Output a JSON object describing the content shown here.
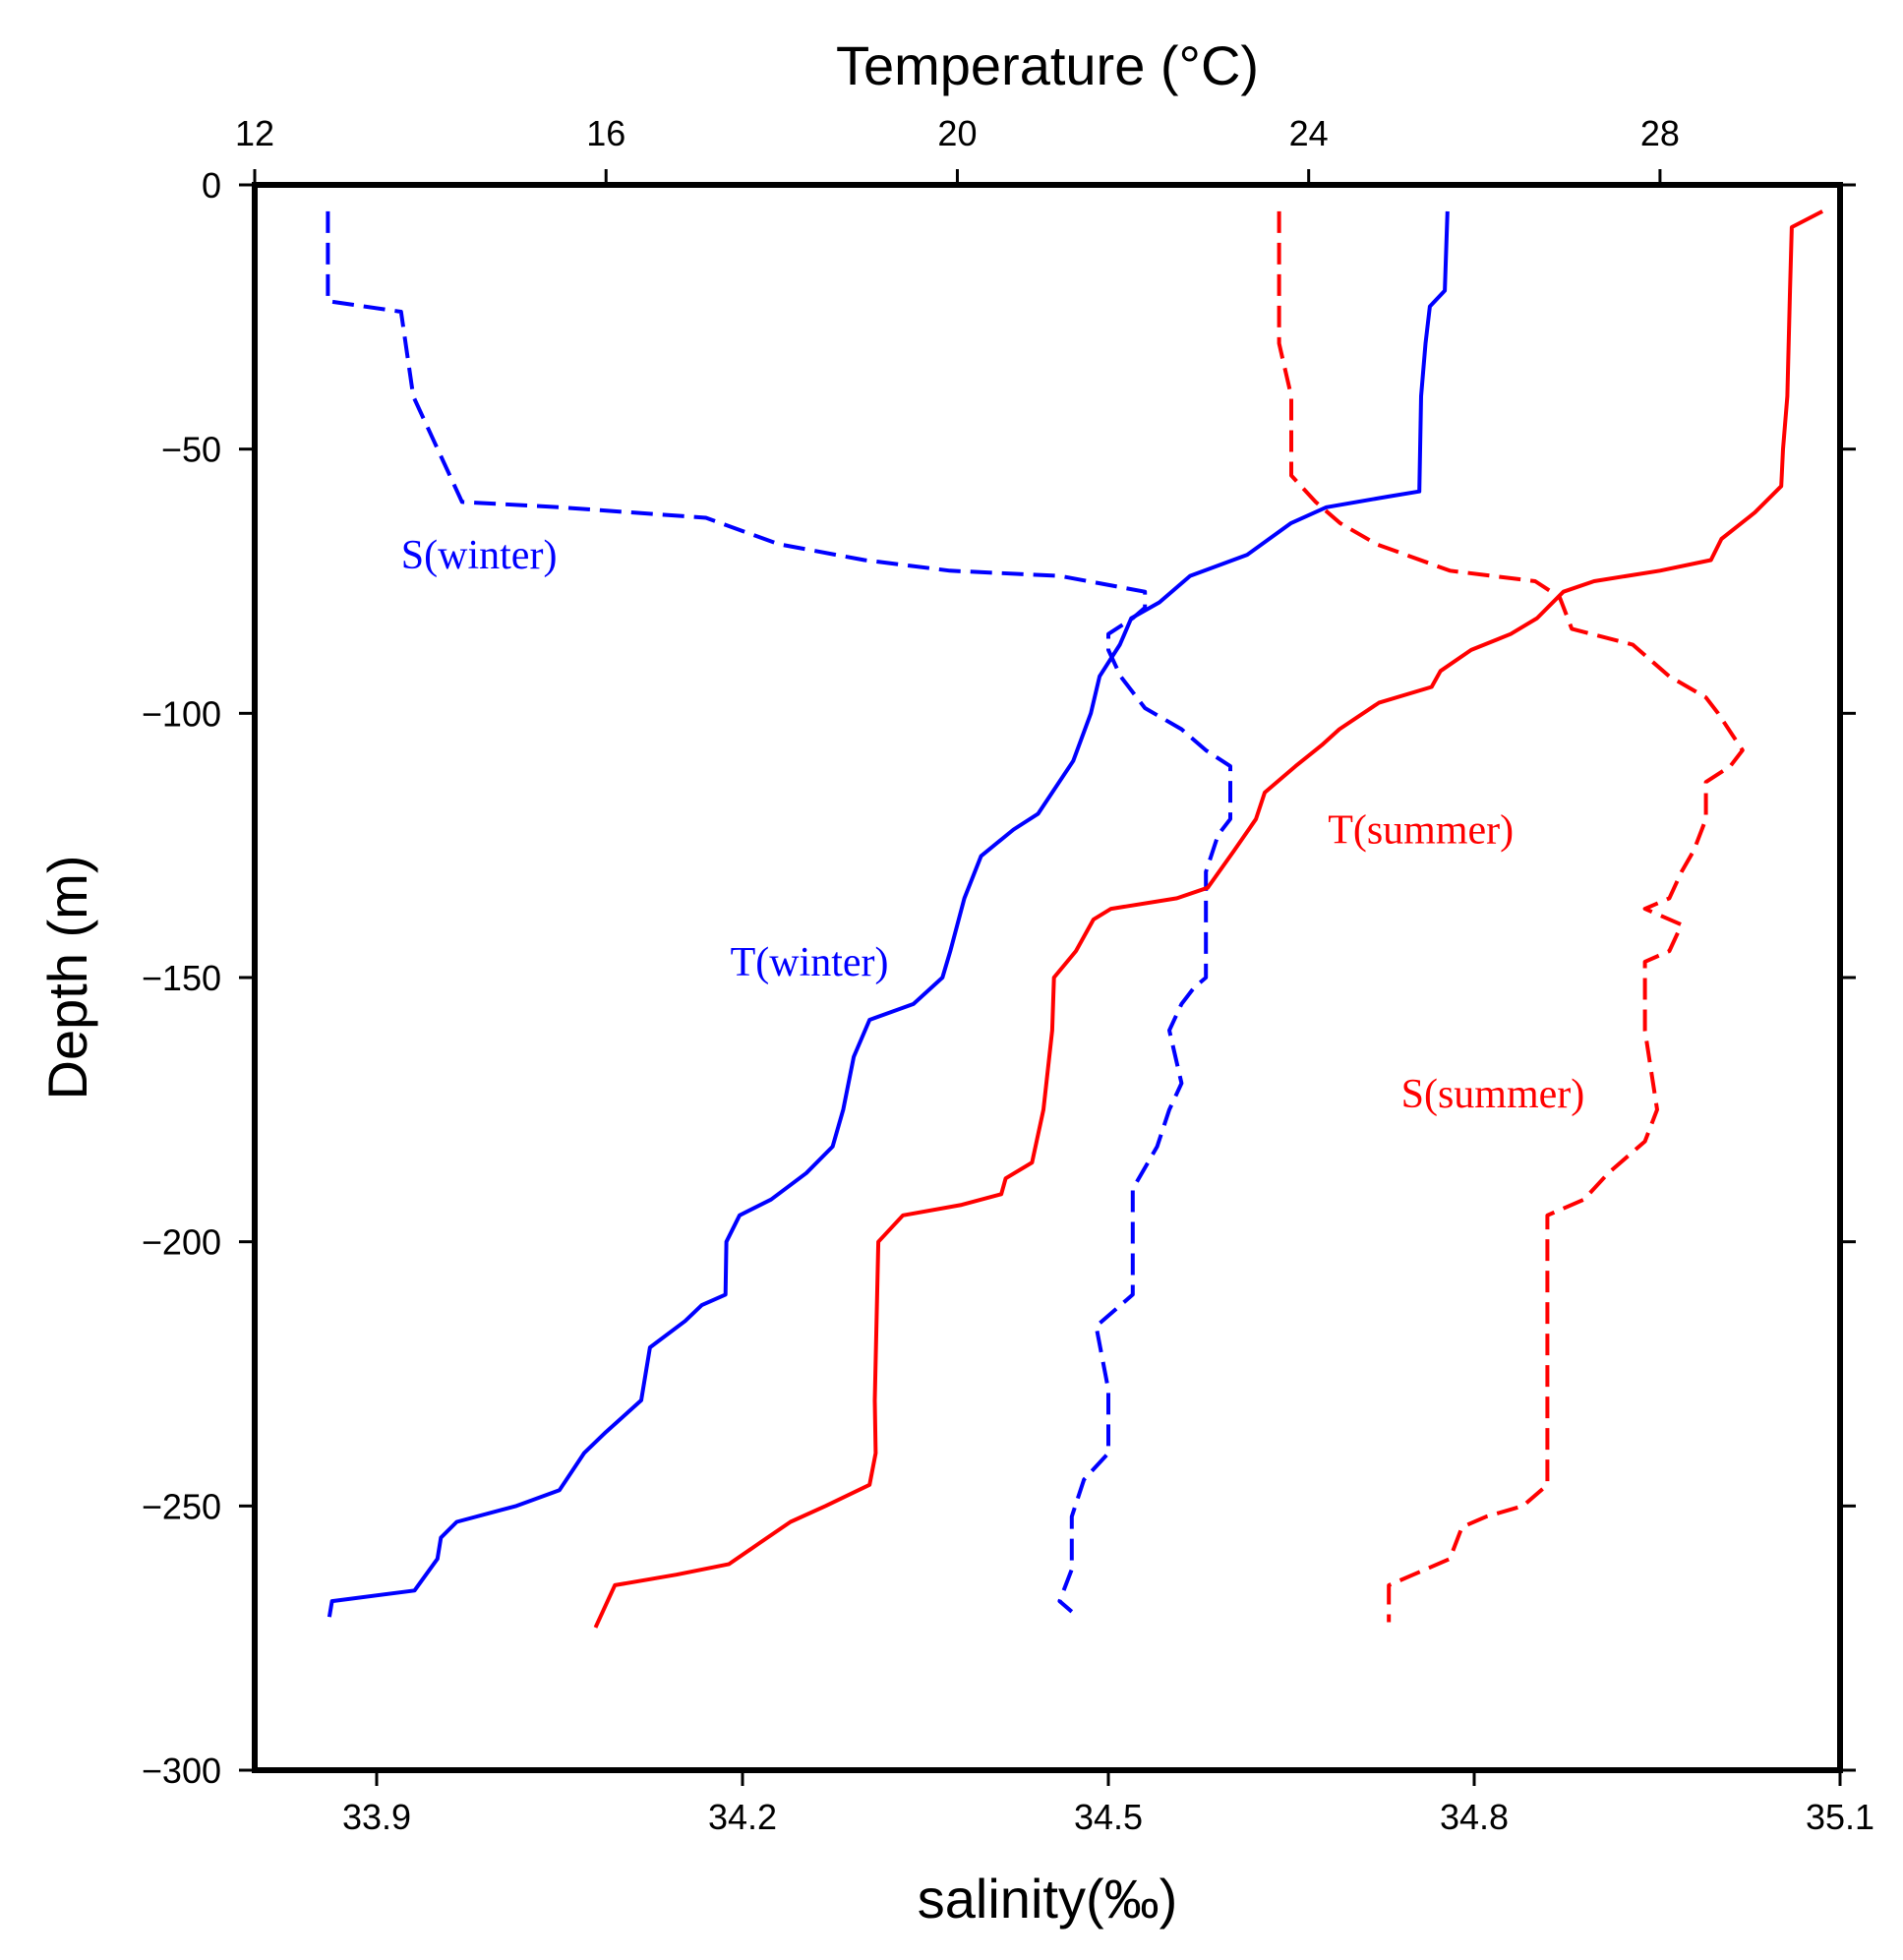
{
  "chart_data": {
    "type": "line",
    "xlabel_bottom": "salinity(‰)",
    "xlabel_top": "Temperature (°C)",
    "ylabel": "Depth (m)",
    "x_bottom_lim": [
      33.8,
      35.1
    ],
    "x_top_lim": [
      12,
      30.05
    ],
    "ylim": [
      -300,
      0
    ],
    "x_bottom_ticks": [
      33.9,
      34.2,
      34.5,
      34.8,
      35.1
    ],
    "x_top_ticks": [
      12,
      16,
      20,
      24,
      28
    ],
    "y_ticks": [
      0,
      -50,
      -100,
      -150,
      -200,
      -250,
      -300
    ],
    "grid": false,
    "legend": "none",
    "series": [
      {
        "name": "S(winter)",
        "axis": "salinity",
        "color": "#0000ff",
        "dash": "dashed",
        "points": [
          [
            33.86,
            -5
          ],
          [
            33.86,
            -22
          ],
          [
            33.92,
            -24
          ],
          [
            33.93,
            -40
          ],
          [
            33.96,
            -55
          ],
          [
            33.97,
            -60
          ],
          [
            34.05,
            -61
          ],
          [
            34.17,
            -63
          ],
          [
            34.23,
            -68
          ],
          [
            34.3,
            -71
          ],
          [
            34.37,
            -73
          ],
          [
            34.46,
            -74
          ],
          [
            34.53,
            -77
          ],
          [
            34.53,
            -80
          ],
          [
            34.52,
            -82
          ],
          [
            34.5,
            -85
          ],
          [
            34.5,
            -88
          ],
          [
            34.51,
            -93
          ],
          [
            34.53,
            -99
          ],
          [
            34.56,
            -103
          ],
          [
            34.58,
            -107
          ],
          [
            34.6,
            -110
          ],
          [
            34.6,
            -120
          ],
          [
            34.59,
            -123
          ],
          [
            34.58,
            -130
          ],
          [
            34.58,
            -136
          ],
          [
            34.58,
            -150
          ],
          [
            34.57,
            -152
          ],
          [
            34.56,
            -155
          ],
          [
            34.55,
            -160
          ],
          [
            34.56,
            -170
          ],
          [
            34.55,
            -175
          ],
          [
            34.54,
            -182
          ],
          [
            34.52,
            -190
          ],
          [
            34.52,
            -210
          ],
          [
            34.51,
            -212
          ],
          [
            34.49,
            -216
          ],
          [
            34.5,
            -228
          ],
          [
            34.5,
            -240
          ],
          [
            34.48,
            -245
          ],
          [
            34.47,
            -252
          ],
          [
            34.47,
            -262
          ],
          [
            34.46,
            -268
          ],
          [
            34.47,
            -270
          ]
        ]
      },
      {
        "name": "T(winter)",
        "axis": "temperature",
        "color": "#0000ff",
        "dash": "solid",
        "points": [
          [
            25.58,
            -5
          ],
          [
            25.55,
            -20
          ],
          [
            25.38,
            -23
          ],
          [
            25.33,
            -30
          ],
          [
            25.28,
            -40
          ],
          [
            25.26,
            -58
          ],
          [
            24.9,
            -59
          ],
          [
            24.2,
            -61
          ],
          [
            23.8,
            -64
          ],
          [
            23.3,
            -70
          ],
          [
            22.65,
            -74
          ],
          [
            22.3,
            -79
          ],
          [
            21.98,
            -82
          ],
          [
            21.85,
            -87
          ],
          [
            21.62,
            -93
          ],
          [
            21.52,
            -100
          ],
          [
            21.32,
            -109
          ],
          [
            20.92,
            -119
          ],
          [
            20.64,
            -122
          ],
          [
            20.27,
            -127
          ],
          [
            20.08,
            -135
          ],
          [
            19.92,
            -145
          ],
          [
            19.83,
            -150
          ],
          [
            19.5,
            -155
          ],
          [
            19.0,
            -158
          ],
          [
            18.82,
            -165
          ],
          [
            18.7,
            -175
          ],
          [
            18.58,
            -182
          ],
          [
            18.28,
            -187
          ],
          [
            17.88,
            -192
          ],
          [
            17.52,
            -195
          ],
          [
            17.37,
            -200
          ],
          [
            17.36,
            -210
          ],
          [
            17.09,
            -212
          ],
          [
            16.9,
            -215
          ],
          [
            16.5,
            -220
          ],
          [
            16.4,
            -230
          ],
          [
            16.0,
            -236
          ],
          [
            15.75,
            -240
          ],
          [
            15.47,
            -247
          ],
          [
            14.98,
            -250
          ],
          [
            14.3,
            -253
          ],
          [
            14.12,
            -256
          ],
          [
            14.08,
            -260
          ],
          [
            13.82,
            -266
          ],
          [
            12.88,
            -268
          ],
          [
            12.85,
            -271
          ]
        ]
      },
      {
        "name": "T(summer)",
        "axis": "temperature",
        "color": "#ff0000",
        "dash": "solid",
        "points": [
          [
            29.85,
            -5
          ],
          [
            29.5,
            -8
          ],
          [
            29.48,
            -20
          ],
          [
            29.45,
            -40
          ],
          [
            29.4,
            -50
          ],
          [
            29.38,
            -57
          ],
          [
            29.08,
            -62
          ],
          [
            28.7,
            -67
          ],
          [
            28.58,
            -71
          ],
          [
            28.0,
            -73
          ],
          [
            27.25,
            -75
          ],
          [
            26.9,
            -77
          ],
          [
            26.6,
            -82
          ],
          [
            26.3,
            -85
          ],
          [
            25.85,
            -88
          ],
          [
            25.5,
            -92
          ],
          [
            25.4,
            -95
          ],
          [
            24.8,
            -98
          ],
          [
            24.35,
            -103
          ],
          [
            24.15,
            -106
          ],
          [
            23.85,
            -110
          ],
          [
            23.5,
            -115
          ],
          [
            23.4,
            -120
          ],
          [
            23.15,
            -126
          ],
          [
            22.85,
            -133
          ],
          [
            22.5,
            -135
          ],
          [
            21.75,
            -137
          ],
          [
            21.55,
            -139
          ],
          [
            21.35,
            -145
          ],
          [
            21.1,
            -150
          ],
          [
            21.08,
            -160
          ],
          [
            20.98,
            -175
          ],
          [
            20.85,
            -185
          ],
          [
            20.55,
            -188
          ],
          [
            20.5,
            -191
          ],
          [
            20.05,
            -193
          ],
          [
            19.38,
            -195
          ],
          [
            19.1,
            -200
          ],
          [
            19.08,
            -215
          ],
          [
            19.06,
            -230
          ],
          [
            19.07,
            -240
          ],
          [
            19.0,
            -246
          ],
          [
            18.5,
            -250
          ],
          [
            18.1,
            -253
          ],
          [
            17.75,
            -257
          ],
          [
            17.4,
            -261
          ],
          [
            16.8,
            -263
          ],
          [
            16.1,
            -265
          ],
          [
            15.88,
            -273
          ]
        ]
      },
      {
        "name": "S(summer)",
        "axis": "salinity",
        "color": "#ff0000",
        "dash": "dashed",
        "points": [
          [
            34.64,
            -5
          ],
          [
            34.64,
            -20
          ],
          [
            34.64,
            -30
          ],
          [
            34.65,
            -40
          ],
          [
            34.65,
            -55
          ],
          [
            34.67,
            -60
          ],
          [
            34.69,
            -64
          ],
          [
            34.72,
            -68
          ],
          [
            34.78,
            -73
          ],
          [
            34.85,
            -75
          ],
          [
            34.87,
            -78
          ],
          [
            34.88,
            -84
          ],
          [
            34.93,
            -87
          ],
          [
            34.96,
            -93
          ],
          [
            34.99,
            -97
          ],
          [
            35.0,
            -100
          ],
          [
            35.02,
            -107
          ],
          [
            35.01,
            -110
          ],
          [
            34.99,
            -113
          ],
          [
            34.99,
            -120
          ],
          [
            34.98,
            -126
          ],
          [
            34.97,
            -130
          ],
          [
            34.96,
            -135
          ],
          [
            34.94,
            -137
          ],
          [
            34.97,
            -140
          ],
          [
            34.96,
            -145
          ],
          [
            34.94,
            -147
          ],
          [
            34.94,
            -160
          ],
          [
            34.95,
            -175
          ],
          [
            34.94,
            -181
          ],
          [
            34.91,
            -187
          ],
          [
            34.89,
            -192
          ],
          [
            34.86,
            -195
          ],
          [
            34.86,
            -210
          ],
          [
            34.86,
            -240
          ],
          [
            34.86,
            -246
          ],
          [
            34.84,
            -250
          ],
          [
            34.81,
            -252
          ],
          [
            34.79,
            -254
          ],
          [
            34.78,
            -260
          ],
          [
            34.75,
            -263
          ],
          [
            34.73,
            -265
          ],
          [
            34.73,
            -272
          ]
        ]
      }
    ],
    "annotations": [
      {
        "text": "S(winter)",
        "color": "#0000ff",
        "x_sal": 33.92,
        "y": -70
      },
      {
        "text": "T(winter)",
        "color": "#0000ff",
        "x_sal": 34.19,
        "y": -147
      },
      {
        "text": "T(summer)",
        "color": "#ff0000",
        "x_sal": 34.68,
        "y": -122
      },
      {
        "text": "S(summer)",
        "color": "#ff0000",
        "x_sal": 34.74,
        "y": -172
      }
    ]
  }
}
